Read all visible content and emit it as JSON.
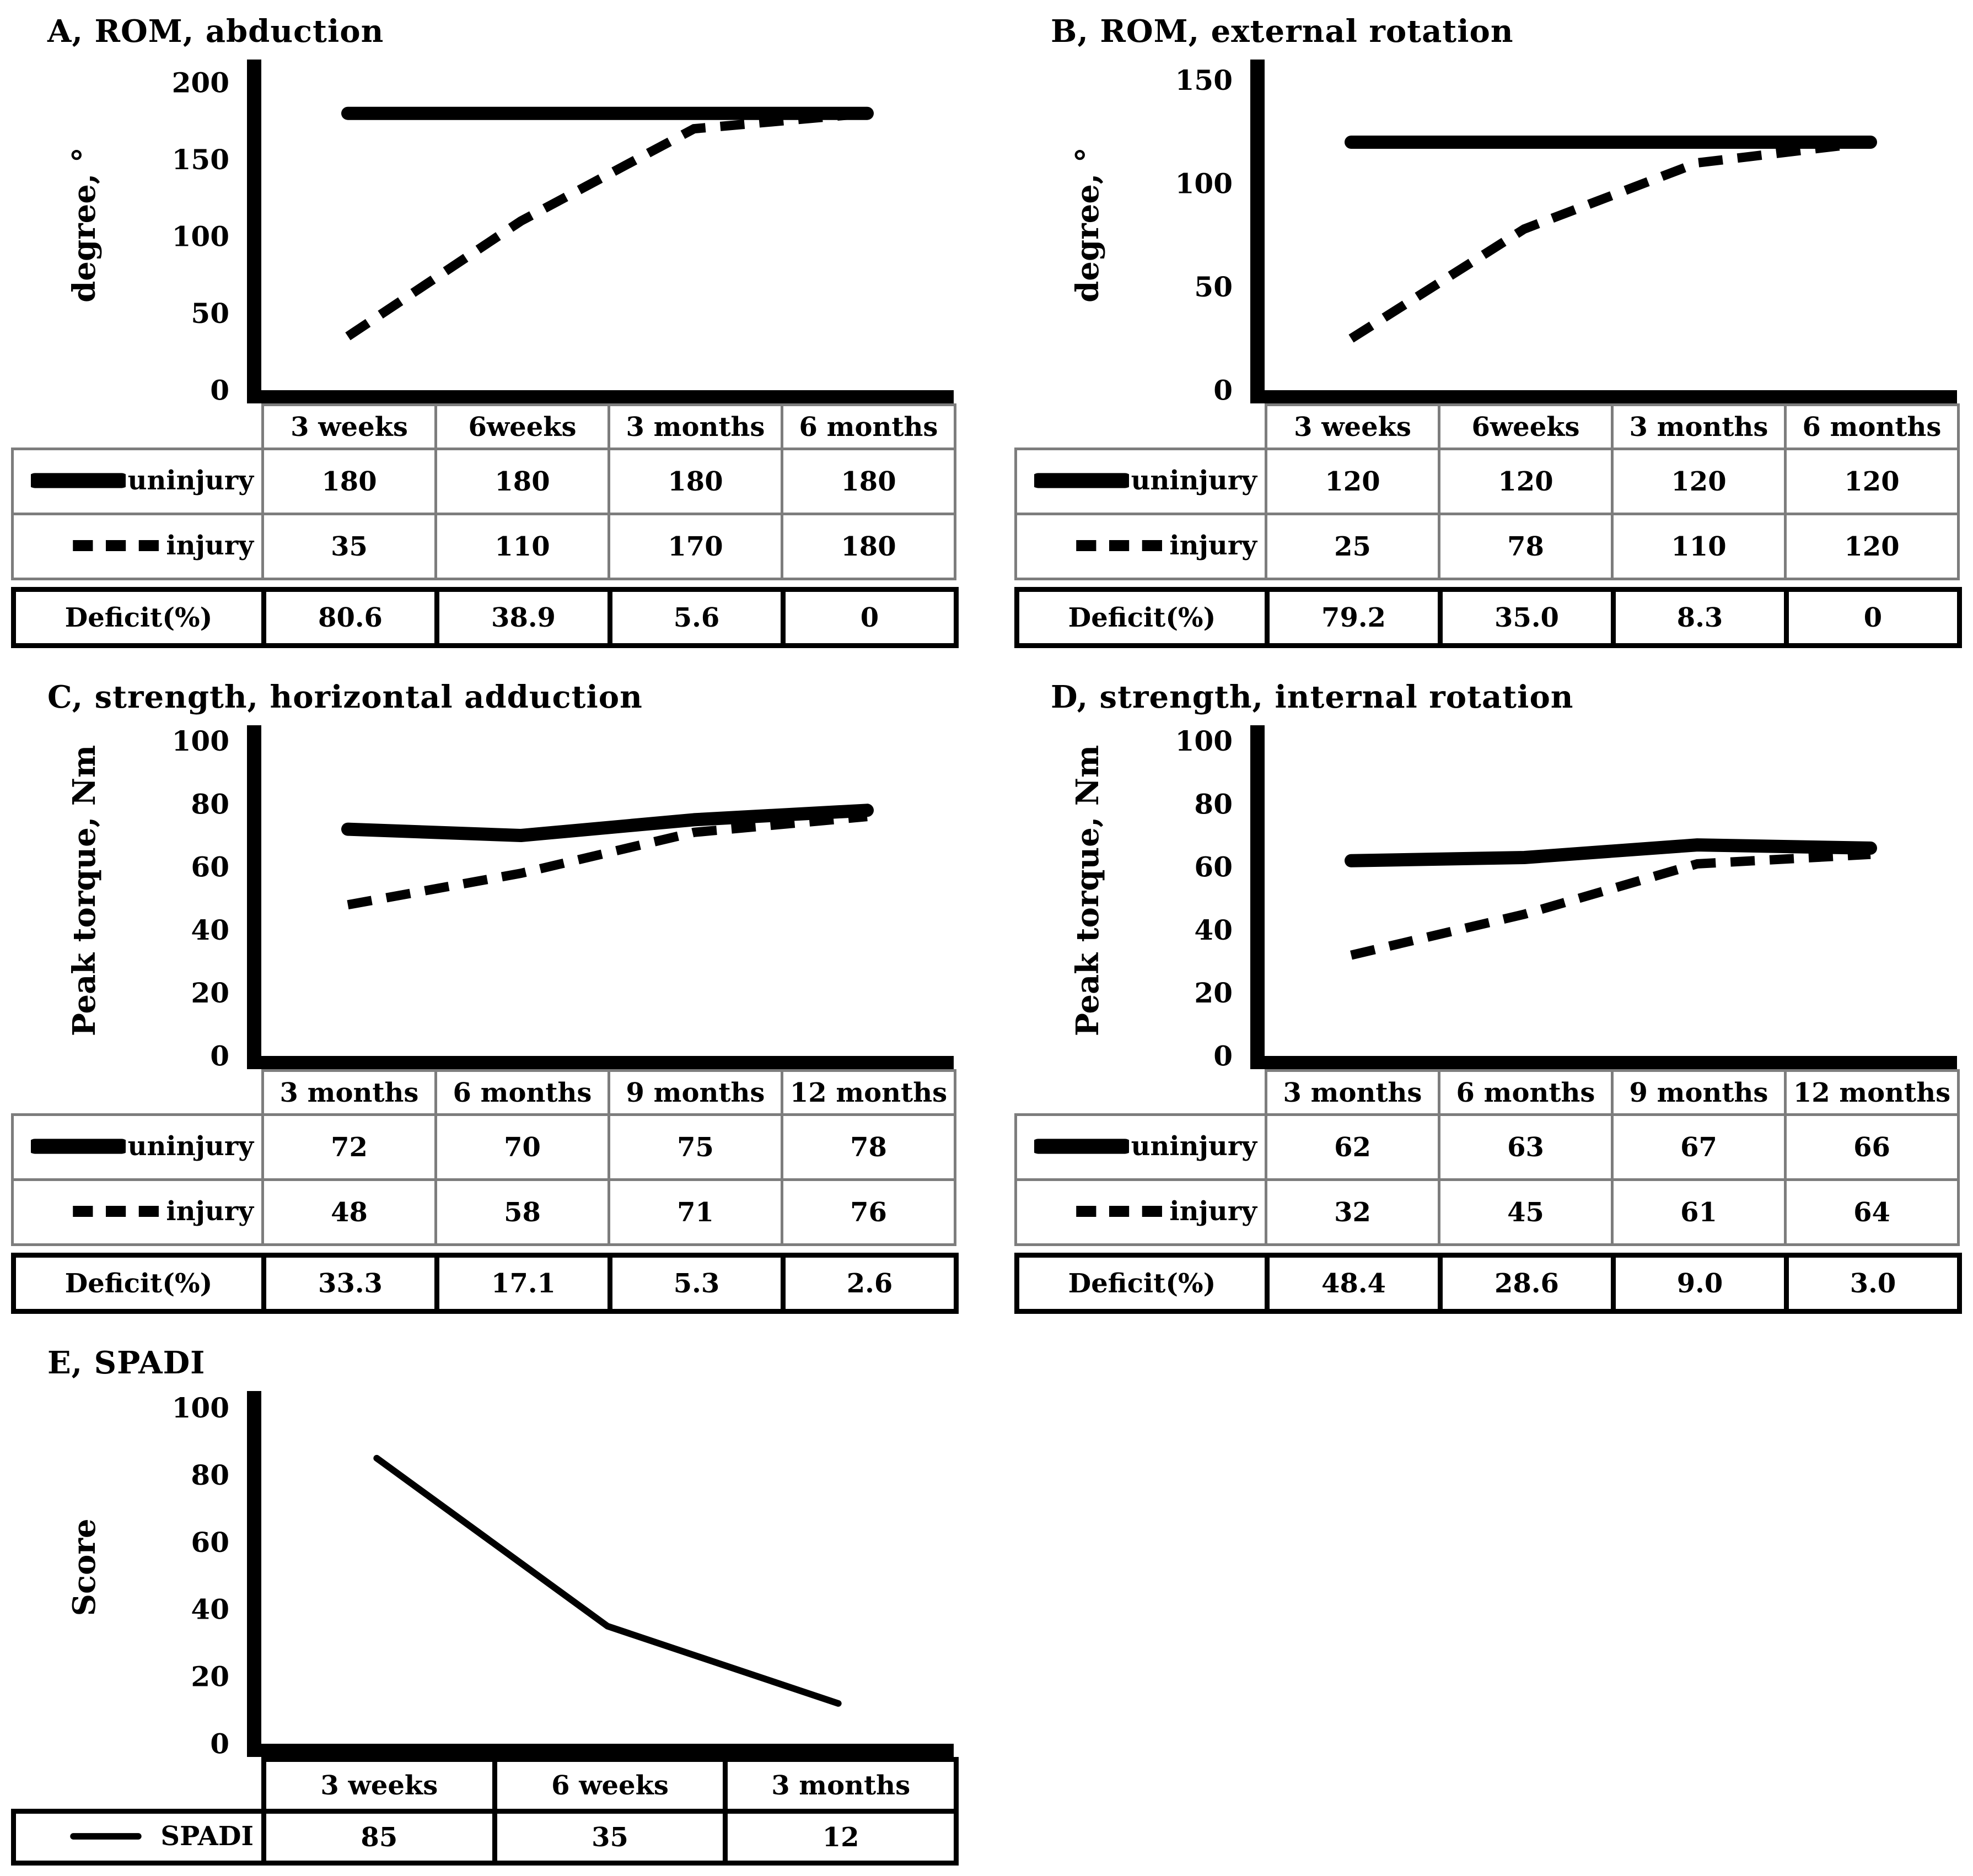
{
  "figure": {
    "background": "#ffffff",
    "text_color": "#000000",
    "grid_border_color": "#7d7d7d",
    "deficit_border_color": "#000000"
  },
  "chart_data": [
    {
      "id": "A",
      "type": "line",
      "title": "A, ROM, abduction",
      "ylabel": "degree, °",
      "yticks": [
        0,
        50,
        100,
        150,
        200
      ],
      "ylim": [
        0,
        215
      ],
      "grid": false,
      "legend_position": "table-left",
      "categories": [
        "3 weeks",
        "6weeks",
        "3 months",
        "6 months"
      ],
      "series": [
        {
          "name": "uninjury",
          "style": "solid",
          "values": [
            180,
            180,
            180,
            180
          ]
        },
        {
          "name": "injury",
          "style": "dashed",
          "values": [
            35,
            110,
            170,
            180
          ]
        }
      ],
      "deficit_row": {
        "label": "Deficit(%)",
        "values": [
          "80.6",
          "38.9",
          "5.6",
          "0"
        ]
      }
    },
    {
      "id": "B",
      "type": "line",
      "title": "B, ROM, external rotation",
      "ylabel": "degree, °",
      "yticks": [
        0,
        50,
        100,
        150
      ],
      "ylim": [
        0,
        160
      ],
      "grid": false,
      "legend_position": "table-left",
      "categories": [
        "3 weeks",
        "6weeks",
        "3 months",
        "6 months"
      ],
      "series": [
        {
          "name": "uninjury",
          "style": "solid",
          "values": [
            120,
            120,
            120,
            120
          ]
        },
        {
          "name": "injury",
          "style": "dashed",
          "values": [
            25,
            78,
            110,
            120
          ]
        }
      ],
      "deficit_row": {
        "label": "Deficit(%)",
        "values": [
          "79.2",
          "35.0",
          "8.3",
          "0"
        ]
      }
    },
    {
      "id": "C",
      "type": "line",
      "title": "C, strength, horizontal adduction",
      "ylabel": "Peak torque, Nm",
      "yticks": [
        0,
        20,
        40,
        60,
        80,
        100
      ],
      "ylim": [
        0,
        105
      ],
      "grid": false,
      "legend_position": "table-left",
      "categories": [
        "3 months",
        "6 months",
        "9 months",
        "12 months"
      ],
      "series": [
        {
          "name": "uninjury",
          "style": "solid",
          "values": [
            72,
            70,
            75,
            78
          ]
        },
        {
          "name": "injury",
          "style": "dashed",
          "values": [
            48,
            58,
            71,
            76
          ]
        }
      ],
      "deficit_row": {
        "label": "Deficit(%)",
        "values": [
          "33.3",
          "17.1",
          "5.3",
          "2.6"
        ]
      }
    },
    {
      "id": "D",
      "type": "line",
      "title": "D, strength, internal rotation",
      "ylabel": "Peak torque, Nm",
      "yticks": [
        0,
        20,
        40,
        60,
        80,
        100
      ],
      "ylim": [
        0,
        105
      ],
      "grid": false,
      "legend_position": "table-left",
      "categories": [
        "3 months",
        "6 months",
        "9 months",
        "12 months"
      ],
      "series": [
        {
          "name": "uninjury",
          "style": "solid",
          "values": [
            62,
            63,
            67,
            66
          ]
        },
        {
          "name": "injury",
          "style": "dashed",
          "values": [
            32,
            45,
            61,
            64
          ]
        }
      ],
      "deficit_row": {
        "label": "Deficit(%)",
        "values": [
          "48.4",
          "28.6",
          "9.0",
          "3.0"
        ]
      }
    },
    {
      "id": "E",
      "type": "line",
      "title": "E, SPADI",
      "ylabel": "Score",
      "yticks": [
        0,
        20,
        40,
        60,
        80,
        100
      ],
      "ylim": [
        0,
        105
      ],
      "grid": false,
      "legend_position": "table-left",
      "categories": [
        "3 weeks",
        "6 weeks",
        "3 months"
      ],
      "series": [
        {
          "name": "SPADI",
          "style": "thin",
          "values": [
            85,
            35,
            12
          ]
        }
      ],
      "deficit_row": null
    }
  ]
}
